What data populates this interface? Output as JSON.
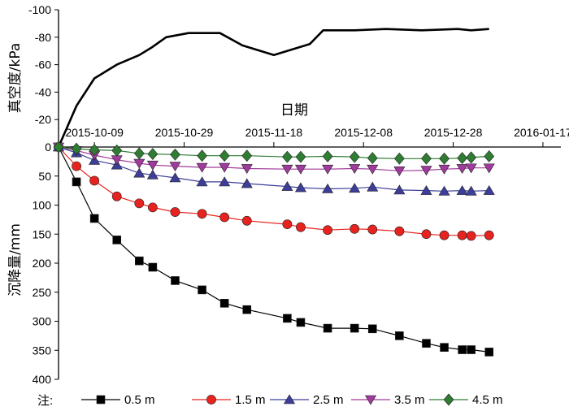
{
  "chart_data": [
    {
      "type": "line",
      "name": "vacuum",
      "ylabel": "真空度/kPa",
      "ylim": [
        -100,
        0
      ],
      "y_ticks": [
        "-100",
        "-80",
        "-60",
        "-40",
        "-20",
        "0"
      ],
      "x_title": "日期",
      "x_ticks": [
        "2015-10-09",
        "2015-10-29",
        "2015-11-18",
        "2015-12-08",
        "2015-12-28",
        "2016-01-17"
      ],
      "xlim": [
        "2015-10-01",
        "2016-01-21"
      ],
      "series": [
        {
          "color": "#000000",
          "points": [
            [
              "2015-10-01",
              0
            ],
            [
              "2015-10-05",
              -30
            ],
            [
              "2015-10-09",
              -50
            ],
            [
              "2015-10-14",
              -60
            ],
            [
              "2015-10-19",
              -67
            ],
            [
              "2015-10-22",
              -73
            ],
            [
              "2015-10-25",
              -80
            ],
            [
              "2015-10-30",
              -83
            ],
            [
              "2015-11-06",
              -83
            ],
            [
              "2015-11-11",
              -74
            ],
            [
              "2015-11-18",
              -67
            ],
            [
              "2015-11-26",
              -75
            ],
            [
              "2015-11-29",
              -85
            ],
            [
              "2015-12-06",
              -85
            ],
            [
              "2015-12-13",
              -86
            ],
            [
              "2015-12-21",
              -85
            ],
            [
              "2015-12-29",
              -86
            ],
            [
              "2016-01-01",
              -85
            ],
            [
              "2016-01-05",
              -86
            ]
          ]
        }
      ]
    },
    {
      "type": "line",
      "name": "settlement",
      "ylabel": "沉降量/mm",
      "ylim": [
        0,
        400
      ],
      "y_ticks": [
        "0",
        "50",
        "100",
        "150",
        "200",
        "250",
        "300",
        "350",
        "400"
      ],
      "x": [
        "2015-10-01",
        "2015-10-05",
        "2015-10-09",
        "2015-10-14",
        "2015-10-19",
        "2015-10-22",
        "2015-10-27",
        "2015-11-02",
        "2015-11-07",
        "2015-11-12",
        "2015-11-21",
        "2015-11-24",
        "2015-11-30",
        "2015-12-06",
        "2015-12-10",
        "2015-12-16",
        "2015-12-22",
        "2015-12-26",
        "2015-12-30",
        "2016-01-01",
        "2016-01-05"
      ],
      "series": [
        {
          "name": "0.5 m",
          "color": "#000000",
          "marker": "square",
          "values": [
            0,
            60,
            123,
            160,
            196,
            207,
            230,
            246,
            269,
            280,
            295,
            302,
            312,
            312,
            313,
            325,
            338,
            345,
            349,
            349,
            353
          ]
        },
        {
          "name": "1.5 m",
          "color": "#e8221e",
          "marker": "circle",
          "values": [
            0,
            33,
            58,
            85,
            97,
            104,
            112,
            115,
            121,
            127,
            133,
            138,
            143,
            141,
            142,
            145,
            150,
            152,
            152,
            153,
            152
          ]
        },
        {
          "name": "2.5 m",
          "color": "#3d3d9a",
          "marker": "triangle",
          "values": [
            0,
            10,
            23,
            31,
            45,
            48,
            53,
            60,
            60,
            63,
            68,
            70,
            72,
            71,
            69,
            74,
            75,
            76,
            75,
            76,
            75
          ]
        },
        {
          "name": "3.5 m",
          "color": "#a03a9c",
          "marker": "triangle-down",
          "values": [
            0,
            6,
            14,
            22,
            28,
            31,
            33,
            35,
            35,
            37,
            38,
            38,
            38,
            37,
            38,
            41,
            40,
            38,
            37,
            36,
            36
          ]
        },
        {
          "name": "4.5 m",
          "color": "#2e7d32",
          "marker": "diamond",
          "values": [
            0,
            3,
            5,
            6,
            11,
            12,
            13,
            15,
            15,
            15,
            17,
            17,
            16,
            17,
            19,
            20,
            20,
            20,
            19,
            18,
            16
          ]
        }
      ]
    }
  ],
  "legend": {
    "prefix": "注:",
    "entries": [
      "0.5 m",
      "1.5 m",
      "2.5 m",
      "3.5 m",
      "4.5 m"
    ]
  }
}
